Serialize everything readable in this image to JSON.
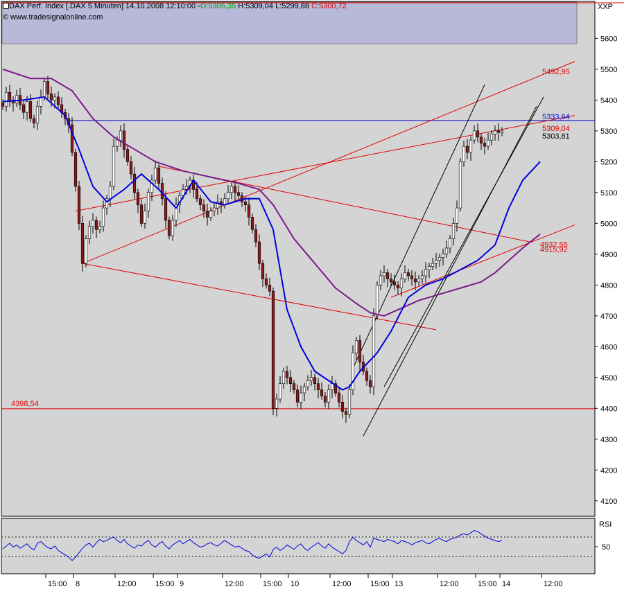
{
  "header": {
    "symbol": "DAX Perf. Index [.DAX  5 Minuten]",
    "datetime": "14.10.2008 12:10:00",
    "open": "O:5305,35",
    "high": "H:5309,04",
    "low": "L:5299,88",
    "close": "C:5300,72",
    "copyright": "© www.tradesignalonline.com",
    "open_color": "#00a000",
    "close_color": "#e00000"
  },
  "exchange_label": "XXP",
  "rsi_label": "RSI",
  "colors": {
    "background": "#d4d4d4",
    "legend_box": "#b8b8d8",
    "candle_up": "#ffffff",
    "candle_down": "#8b1a1a",
    "ma_fast": "#0000dd",
    "ma_slow": "#7a1a8a",
    "trendline": "#e00000",
    "channel": "#000000",
    "hline_blue": "#0000cc"
  },
  "chart_data": {
    "type": "candlestick",
    "title": "DAX Perf. Index [.DAX  5 Minuten]",
    "ylim": [
      4050,
      5720
    ],
    "y_ticks": [
      "4100",
      "4200",
      "4300",
      "4400",
      "4500",
      "4600",
      "4700",
      "4800",
      "4900",
      "5000",
      "5100",
      "5200",
      "5300",
      "5400",
      "5500",
      "5600"
    ],
    "x_ticks": [
      {
        "label": "15:00",
        "bar": 12
      },
      {
        "label": "8",
        "bar": 20
      },
      {
        "label": "12:00",
        "bar": 32
      },
      {
        "label": "15:00",
        "bar": 43
      },
      {
        "label": "9",
        "bar": 50
      },
      {
        "label": "12:00",
        "bar": 63
      },
      {
        "label": "15:00",
        "bar": 74
      },
      {
        "label": "10",
        "bar": 82
      },
      {
        "label": "12:00",
        "bar": 94
      },
      {
        "label": "15:00",
        "bar": 105
      },
      {
        "label": "13",
        "bar": 112
      },
      {
        "label": "12:00",
        "bar": 125
      },
      {
        "label": "15:00",
        "bar": 136
      },
      {
        "label": "14",
        "bar": 143
      },
      {
        "label": "12:00",
        "bar": 155
      }
    ],
    "close_series": [
      5380,
      5425,
      5400,
      5390,
      5415,
      5385,
      5360,
      5395,
      5340,
      5325,
      5380,
      5410,
      5460,
      5420,
      5400,
      5410,
      5385,
      5360,
      5340,
      5320,
      5230,
      5120,
      5000,
      4870,
      4950,
      4990,
      5010,
      4980,
      4990,
      5050,
      5080,
      5120,
      5250,
      5270,
      5300,
      5240,
      5200,
      5160,
      5100,
      5060,
      5000,
      5040,
      5100,
      5140,
      5180,
      5130,
      5080,
      5010,
      4960,
      5010,
      5060,
      5090,
      5110,
      5120,
      5140,
      5110,
      5080,
      5060,
      5040,
      5020,
      5040,
      5050,
      5070,
      5060,
      5080,
      5100,
      5120,
      5100,
      5090,
      5070,
      5060,
      5020,
      4980,
      4940,
      4870,
      4820,
      4800,
      4780,
      4400,
      4430,
      4480,
      4520,
      4500,
      4480,
      4460,
      4420,
      4450,
      4470,
      4490,
      4500,
      4480,
      4460,
      4440,
      4420,
      4460,
      4480,
      4450,
      4420,
      4390,
      4380,
      4460,
      4580,
      4620,
      4550,
      4520,
      4490,
      4470,
      4700,
      4800,
      4830,
      4840,
      4820,
      4810,
      4800,
      4790,
      4820,
      4840,
      4830,
      4820,
      4810,
      4820,
      4830,
      4850,
      4860,
      4870,
      4880,
      4890,
      4900,
      4920,
      4950,
      5000,
      5050,
      5200,
      5250,
      5230,
      5270,
      5300,
      5280,
      5260,
      5250,
      5270,
      5290,
      5300,
      5295,
      5300
    ],
    "ma_fast": {
      "name": "",
      "values": [
        [
          0,
          5395
        ],
        [
          6,
          5400
        ],
        [
          12,
          5410
        ],
        [
          18,
          5350
        ],
        [
          22,
          5240
        ],
        [
          26,
          5120
        ],
        [
          30,
          5070
        ],
        [
          35,
          5110
        ],
        [
          40,
          5160
        ],
        [
          45,
          5110
        ],
        [
          50,
          5050
        ],
        [
          55,
          5140
        ],
        [
          60,
          5070
        ],
        [
          64,
          5060
        ],
        [
          70,
          5080
        ],
        [
          74,
          5080
        ],
        [
          78,
          4980
        ],
        [
          82,
          4720
        ],
        [
          86,
          4600
        ],
        [
          90,
          4520
        ],
        [
          94,
          4490
        ],
        [
          98,
          4460
        ],
        [
          100,
          4470
        ],
        [
          103,
          4520
        ],
        [
          108,
          4580
        ],
        [
          112,
          4650
        ],
        [
          117,
          4760
        ],
        [
          122,
          4800
        ],
        [
          127,
          4820
        ],
        [
          132,
          4850
        ],
        [
          137,
          4880
        ],
        [
          142,
          4930
        ],
        [
          146,
          5050
        ],
        [
          150,
          5140
        ],
        [
          155,
          5200
        ]
      ]
    },
    "ma_slow": {
      "name": "",
      "values": [
        [
          0,
          5500
        ],
        [
          8,
          5470
        ],
        [
          14,
          5470
        ],
        [
          20,
          5430
        ],
        [
          26,
          5340
        ],
        [
          32,
          5280
        ],
        [
          38,
          5240
        ],
        [
          44,
          5200
        ],
        [
          52,
          5170
        ],
        [
          60,
          5150
        ],
        [
          68,
          5130
        ],
        [
          74,
          5110
        ],
        [
          78,
          5060
        ],
        [
          84,
          4950
        ],
        [
          90,
          4870
        ],
        [
          96,
          4790
        ],
        [
          102,
          4740
        ],
        [
          106,
          4710
        ],
        [
          110,
          4700
        ],
        [
          114,
          4720
        ],
        [
          120,
          4750
        ],
        [
          126,
          4770
        ],
        [
          132,
          4790
        ],
        [
          138,
          4810
        ],
        [
          142,
          4840
        ],
        [
          146,
          4880
        ],
        [
          150,
          4920
        ],
        [
          155,
          4965
        ]
      ]
    },
    "horizontal_lines": [
      {
        "price": 4398.54,
        "label": "4398,54",
        "color": "red"
      },
      {
        "price": 5333.64,
        "label": "5333,64",
        "color": "blue"
      }
    ],
    "price_labels": [
      {
        "price": 5492.95,
        "label": "5492,95",
        "color": "red"
      },
      {
        "price": 5309.04,
        "label": "5309,04",
        "color": "red"
      },
      {
        "price": 5303.81,
        "label": "5303,81",
        "color": "black"
      },
      {
        "price": 4932.55,
        "label": "4932,55",
        "color": "red"
      },
      {
        "price": 4915.92,
        "label": "4915,92",
        "color": "red"
      }
    ],
    "trendlines": [
      {
        "p1": [
          23,
          4870
        ],
        "p2": [
          165,
          5525
        ],
        "color": "red"
      },
      {
        "p1": [
          23,
          4870
        ],
        "p2": [
          125,
          4655
        ],
        "color": "red"
      },
      {
        "p1": [
          21,
          5040
        ],
        "p2": [
          165,
          5350
        ],
        "color": "red"
      },
      {
        "p1": [
          45,
          5185
        ],
        "p2": [
          152,
          4940
        ],
        "color": "red"
      },
      {
        "p1": [
          112,
          4760
        ],
        "p2": [
          165,
          4995
        ],
        "color": "red"
      },
      {
        "p1": [
          101,
          4530
        ],
        "p2": [
          139,
          5450
        ],
        "color": "black"
      },
      {
        "p1": [
          104,
          4310
        ],
        "p2": [
          154,
          5380
        ],
        "color": "black"
      },
      {
        "p1": [
          110,
          4470
        ],
        "p2": [
          156,
          5410
        ],
        "color": "black"
      }
    ],
    "rsi": {
      "upper": 70,
      "lower": 30,
      "tick": "50",
      "values": [
        45,
        50,
        55,
        48,
        52,
        46,
        50,
        54,
        47,
        43,
        55,
        58,
        52,
        47,
        45,
        50,
        42,
        38,
        34,
        30,
        24,
        30,
        38,
        46,
        52,
        55,
        48,
        56,
        62,
        58,
        60,
        64,
        66,
        60,
        56,
        62,
        54,
        50,
        46,
        52,
        50,
        56,
        60,
        52,
        48,
        54,
        58,
        50,
        45,
        52,
        56,
        60,
        54,
        58,
        62,
        56,
        52,
        48,
        50,
        54,
        56,
        52,
        50,
        55,
        60,
        56,
        52,
        48,
        50,
        46,
        42,
        40,
        34,
        30,
        28,
        32,
        36,
        30,
        44,
        48,
        42,
        46,
        52,
        48,
        44,
        50,
        54,
        46,
        42,
        48,
        52,
        56,
        50,
        46,
        54,
        48,
        44,
        40,
        36,
        42,
        58,
        66,
        60,
        56,
        52,
        58,
        48,
        64,
        62,
        60,
        58,
        62,
        60,
        58,
        54,
        60,
        58,
        56,
        52,
        56,
        58,
        60,
        56,
        54,
        58,
        62,
        64,
        60,
        58,
        62,
        64,
        66,
        70,
        72,
        70,
        74,
        78,
        76,
        72,
        68,
        64,
        62,
        60,
        58,
        60
      ]
    }
  }
}
